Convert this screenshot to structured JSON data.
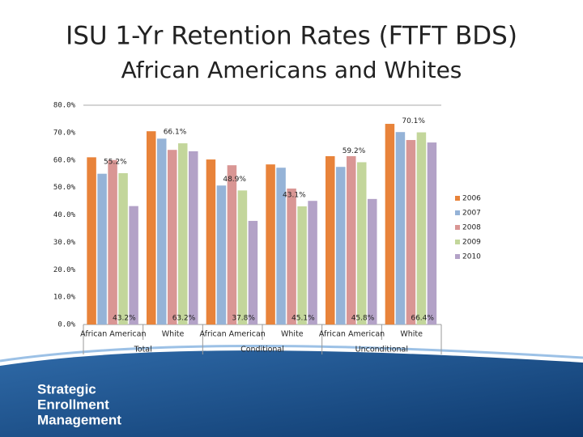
{
  "chart_data": {
    "type": "bar",
    "title": "ISU 1-Yr Retention Rates (FTFT BDS)",
    "subtitle": "African Americans and Whites",
    "categories": [
      "African American",
      "White",
      "African American",
      "White",
      "African American",
      "White"
    ],
    "groups": [
      "Total",
      "Conditional",
      "Unconditional"
    ],
    "series": [
      {
        "name": "2006",
        "color": "#e8833a",
        "values": [
          61,
          70.5,
          60.2,
          58.4,
          61.4,
          73.2
        ]
      },
      {
        "name": "2007",
        "color": "#95b3d7",
        "values": [
          55,
          67.8,
          50.7,
          57.2,
          57.5,
          70.2
        ]
      },
      {
        "name": "2008",
        "color": "#d99694",
        "values": [
          60,
          63.7,
          58.1,
          49.6,
          61.4,
          67.3
        ]
      },
      {
        "name": "2009",
        "color": "#c3d69b",
        "values": [
          55.2,
          66.1,
          48.9,
          43.1,
          59.2,
          70.1
        ],
        "value_labels": [
          "55.2%",
          "66.1%",
          "48.9%",
          "43.1%",
          "59.2%",
          "70.1%"
        ]
      },
      {
        "name": "2010",
        "color": "#b3a2c7",
        "values": [
          43.2,
          63.2,
          37.8,
          45.1,
          45.8,
          66.4
        ],
        "value_labels": [
          "43.2%",
          "63.2%",
          "37.8%",
          "45.1%",
          "45.8%",
          "66.4%"
        ]
      }
    ],
    "ylim": [
      0,
      80
    ],
    "yticks": [
      {
        "value": 0,
        "label": "0.0%"
      },
      {
        "value": 10,
        "label": "10.0%"
      },
      {
        "value": 20,
        "label": "20.0%"
      },
      {
        "value": 30,
        "label": "30.0%"
      },
      {
        "value": 40,
        "label": "40.0%"
      },
      {
        "value": 50,
        "label": "50.0%"
      },
      {
        "value": 60,
        "label": "60.0%"
      },
      {
        "value": 70,
        "label": "70.0%"
      },
      {
        "value": 80,
        "label": "80.0%"
      }
    ],
    "grid": false,
    "legend": "right"
  },
  "branding": [
    "Strategic",
    "Enrollment",
    "Management"
  ]
}
